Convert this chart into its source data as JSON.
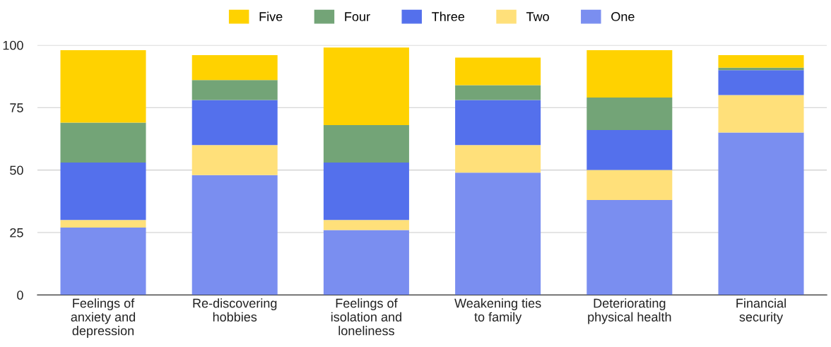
{
  "chart_data": {
    "type": "bar",
    "stacked": true,
    "categories": [
      "Feelings of\nanxiety and\ndepression",
      "Re-discovering\nhobbies",
      "Feelings of\nisolation and\nloneliness",
      "Weakening ties\nto family",
      "Deteriorating\nphysical health",
      "Financial\nsecurity"
    ],
    "series": [
      {
        "name": "One",
        "color": "#7a8ef0",
        "values": [
          27,
          48,
          26,
          49,
          38,
          65
        ]
      },
      {
        "name": "Two",
        "color": "#ffe07a",
        "values": [
          3,
          12,
          4,
          11,
          12,
          15
        ]
      },
      {
        "name": "Three",
        "color": "#5470ec",
        "values": [
          23,
          18,
          23,
          18,
          16,
          10
        ]
      },
      {
        "name": "Four",
        "color": "#73a477",
        "values": [
          16,
          8,
          15,
          6,
          13,
          1
        ]
      },
      {
        "name": "Five",
        "color": "#ffd200",
        "values": [
          29,
          10,
          31,
          11,
          19,
          5
        ]
      }
    ],
    "ylim": [
      0,
      100
    ],
    "yticks": [
      0,
      25,
      50,
      75,
      100
    ],
    "grid": "y",
    "legend": "top"
  }
}
